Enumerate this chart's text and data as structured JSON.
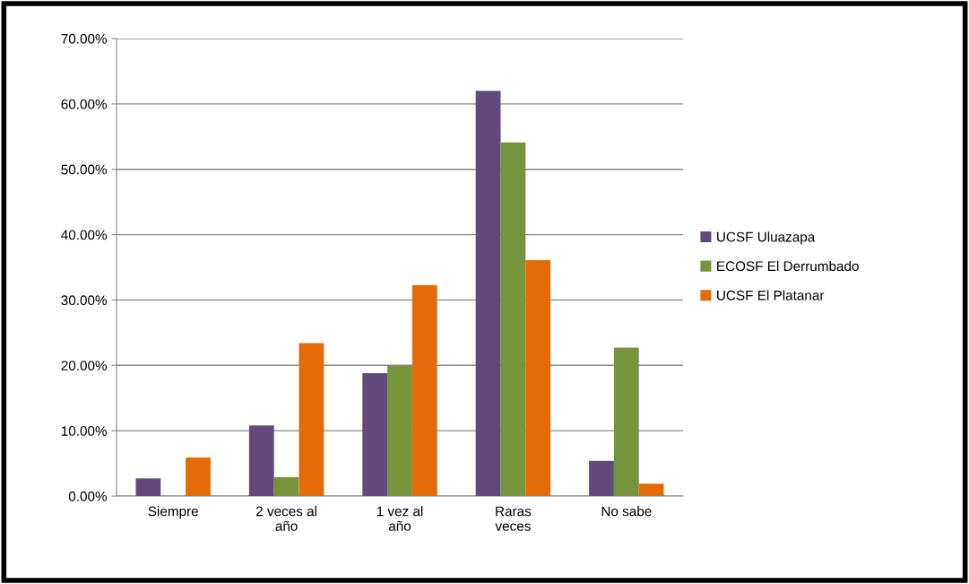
{
  "chart_data": {
    "type": "bar",
    "categories": [
      "Siempre",
      "2 veces al\naño",
      "1 vez al\naño",
      "Raras\nveces",
      "No sabe"
    ],
    "series": [
      {
        "name": "UCSF Uluazapa",
        "color": "#604a7b",
        "values": [
          2.7,
          10.8,
          18.8,
          62.0,
          5.4
        ]
      },
      {
        "name": "ECOSF El Derrumbado",
        "color": "#77933c",
        "values": [
          0,
          2.9,
          20.0,
          54.1,
          22.7
        ]
      },
      {
        "name": "UCSF El Platanar",
        "color": "#e36c09",
        "values": [
          5.9,
          23.4,
          32.3,
          36.1,
          1.9
        ]
      }
    ],
    "ylim": [
      0,
      70
    ],
    "yticks": [
      {
        "value": 0,
        "label": "0.00%"
      },
      {
        "value": 10,
        "label": "10.00%"
      },
      {
        "value": 20,
        "label": "20.00%"
      },
      {
        "value": 30,
        "label": "30.00%"
      },
      {
        "value": 40,
        "label": "40.00%"
      },
      {
        "value": 50,
        "label": "50.00%"
      },
      {
        "value": 60,
        "label": "60.00%"
      },
      {
        "value": 70,
        "label": "70.00%"
      }
    ],
    "grid": "y",
    "legend": "right"
  }
}
